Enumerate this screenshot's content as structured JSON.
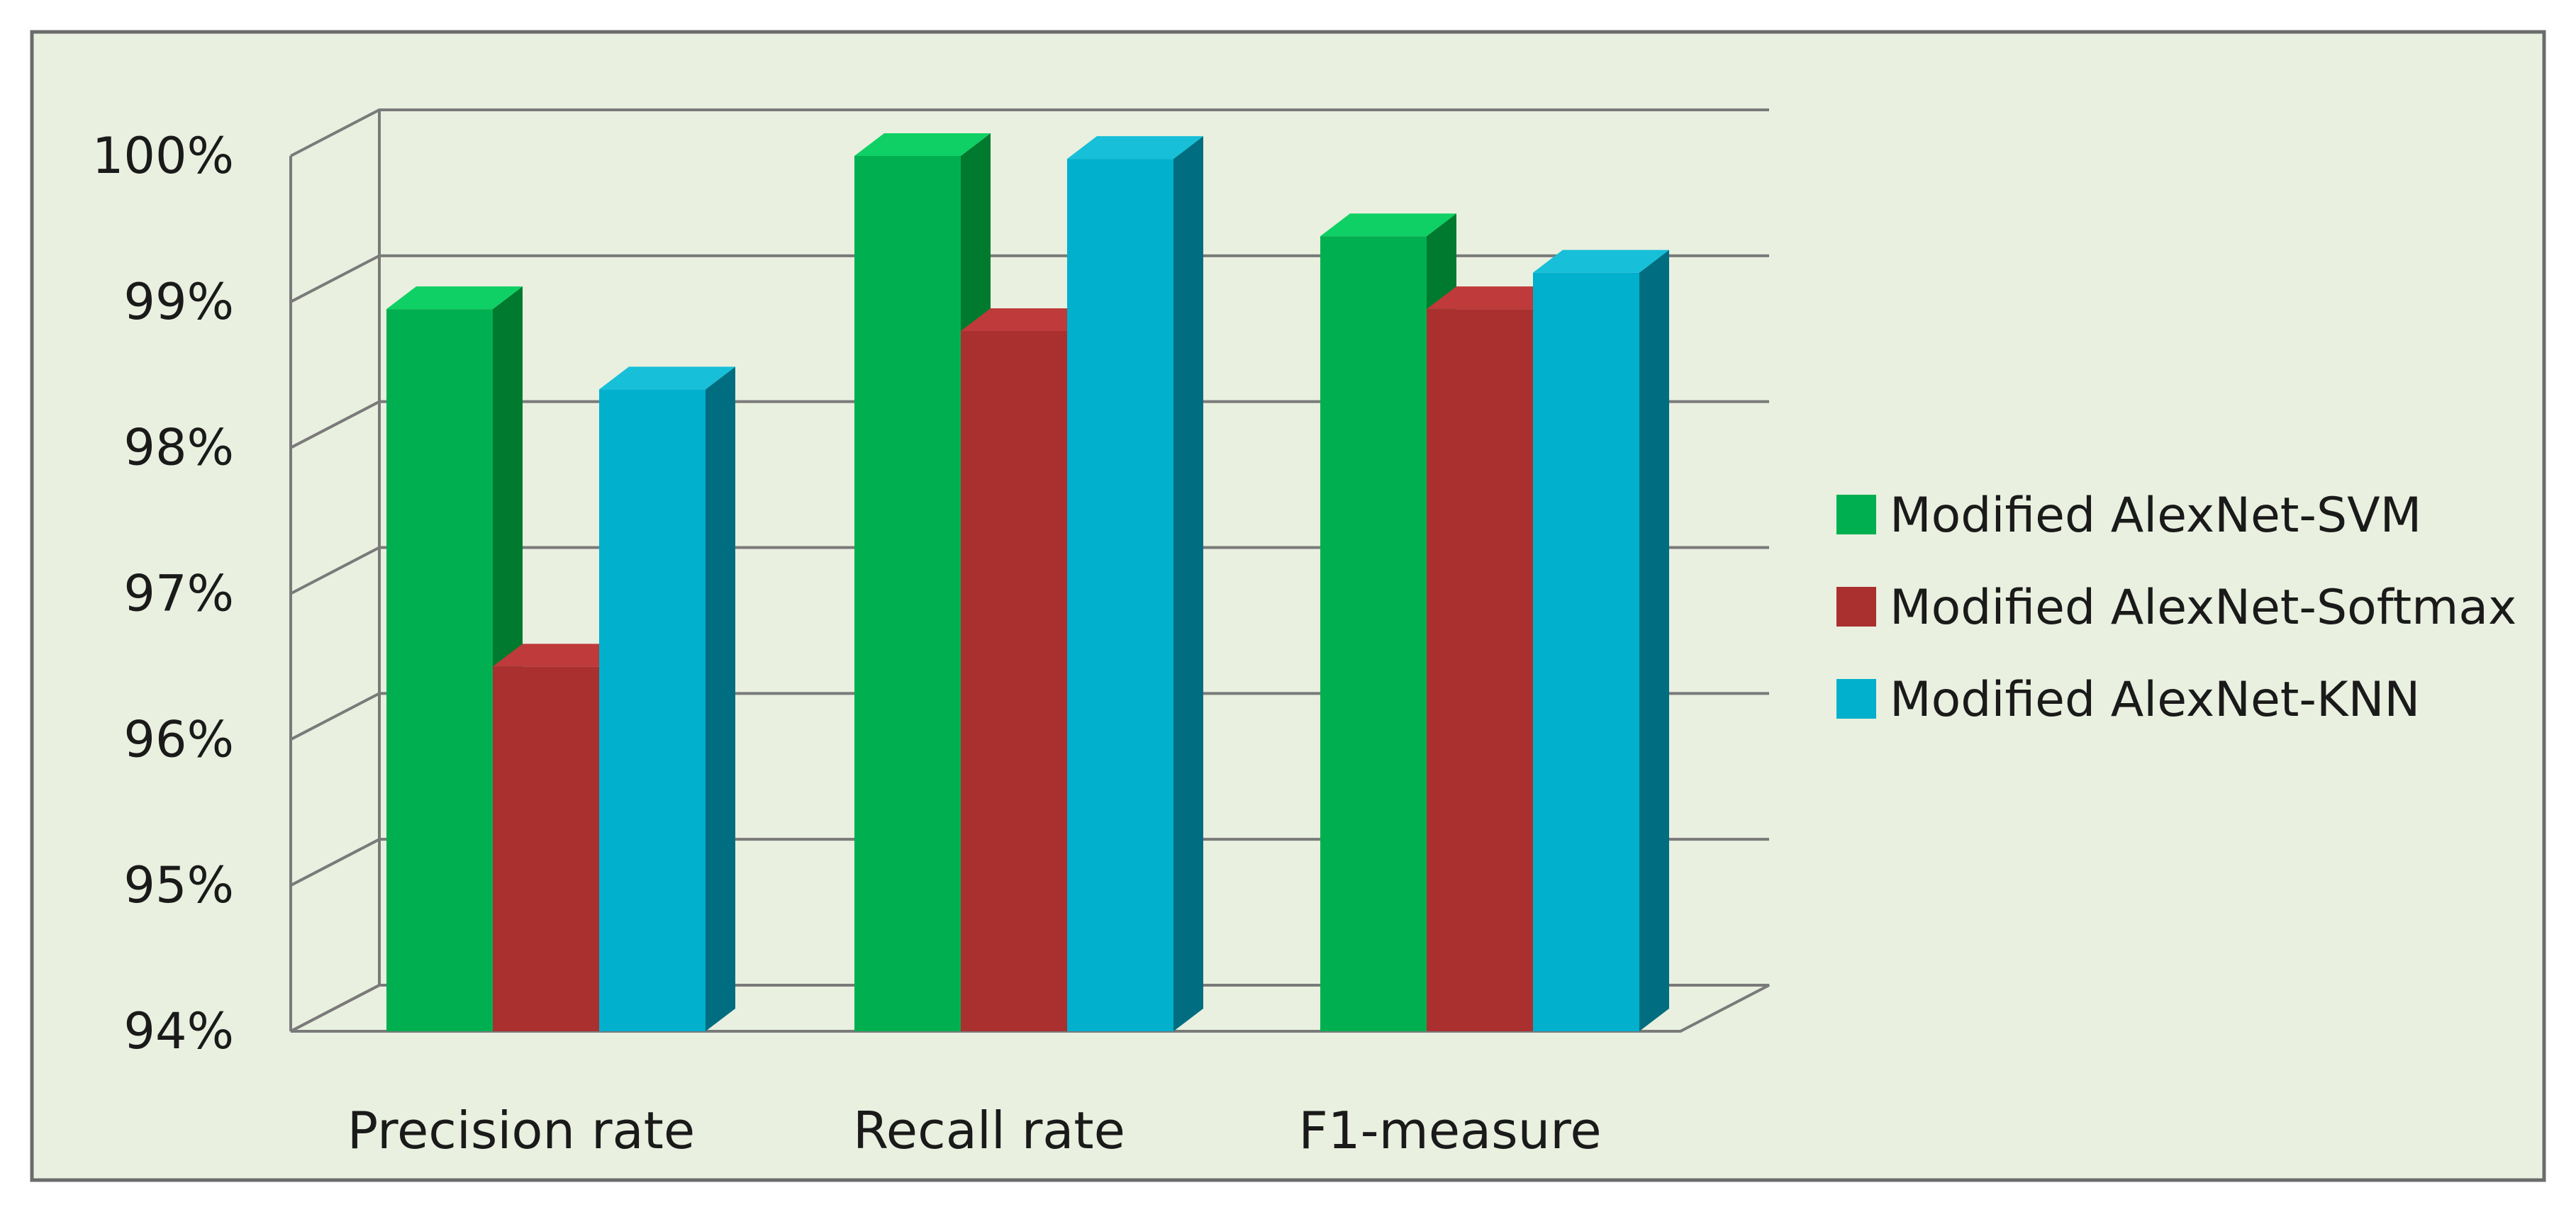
{
  "chart_data": {
    "type": "bar",
    "title": "",
    "xlabel": "",
    "ylabel": "",
    "categories": [
      "Precision rate",
      "Recall rate",
      "F1-measure"
    ],
    "series": [
      {
        "name": "Modified AlexNet-SVM",
        "values": [
          98.95,
          100.0,
          99.45
        ]
      },
      {
        "name": "Modified AlexNet-Softmax",
        "values": [
          96.5,
          98.8,
          98.95
        ]
      },
      {
        "name": "Modified AlexNet-KNN",
        "values": [
          98.4,
          99.98,
          99.2
        ]
      }
    ],
    "ylim": [
      94,
      100
    ],
    "yticks": [
      94,
      95,
      96,
      97,
      98,
      99,
      100
    ],
    "ytick_labels": [
      "94%",
      "95%",
      "96%",
      "97%",
      "98%",
      "99%",
      "100%"
    ],
    "grid": true,
    "legend_position": "right",
    "style": "3d-column",
    "colors": {
      "background": "#e9f0df",
      "frame": "#6b6b6b",
      "grid": "#7a7a7a",
      "series": [
        {
          "front": "#00b050",
          "side": "#007a2e",
          "top": "#0fd064"
        },
        {
          "front": "#aa3030",
          "side": "#7a1f1f",
          "top": "#bf3a3a"
        },
        {
          "front": "#00b0cc",
          "side": "#006e80",
          "top": "#17bfd8"
        }
      ]
    }
  }
}
